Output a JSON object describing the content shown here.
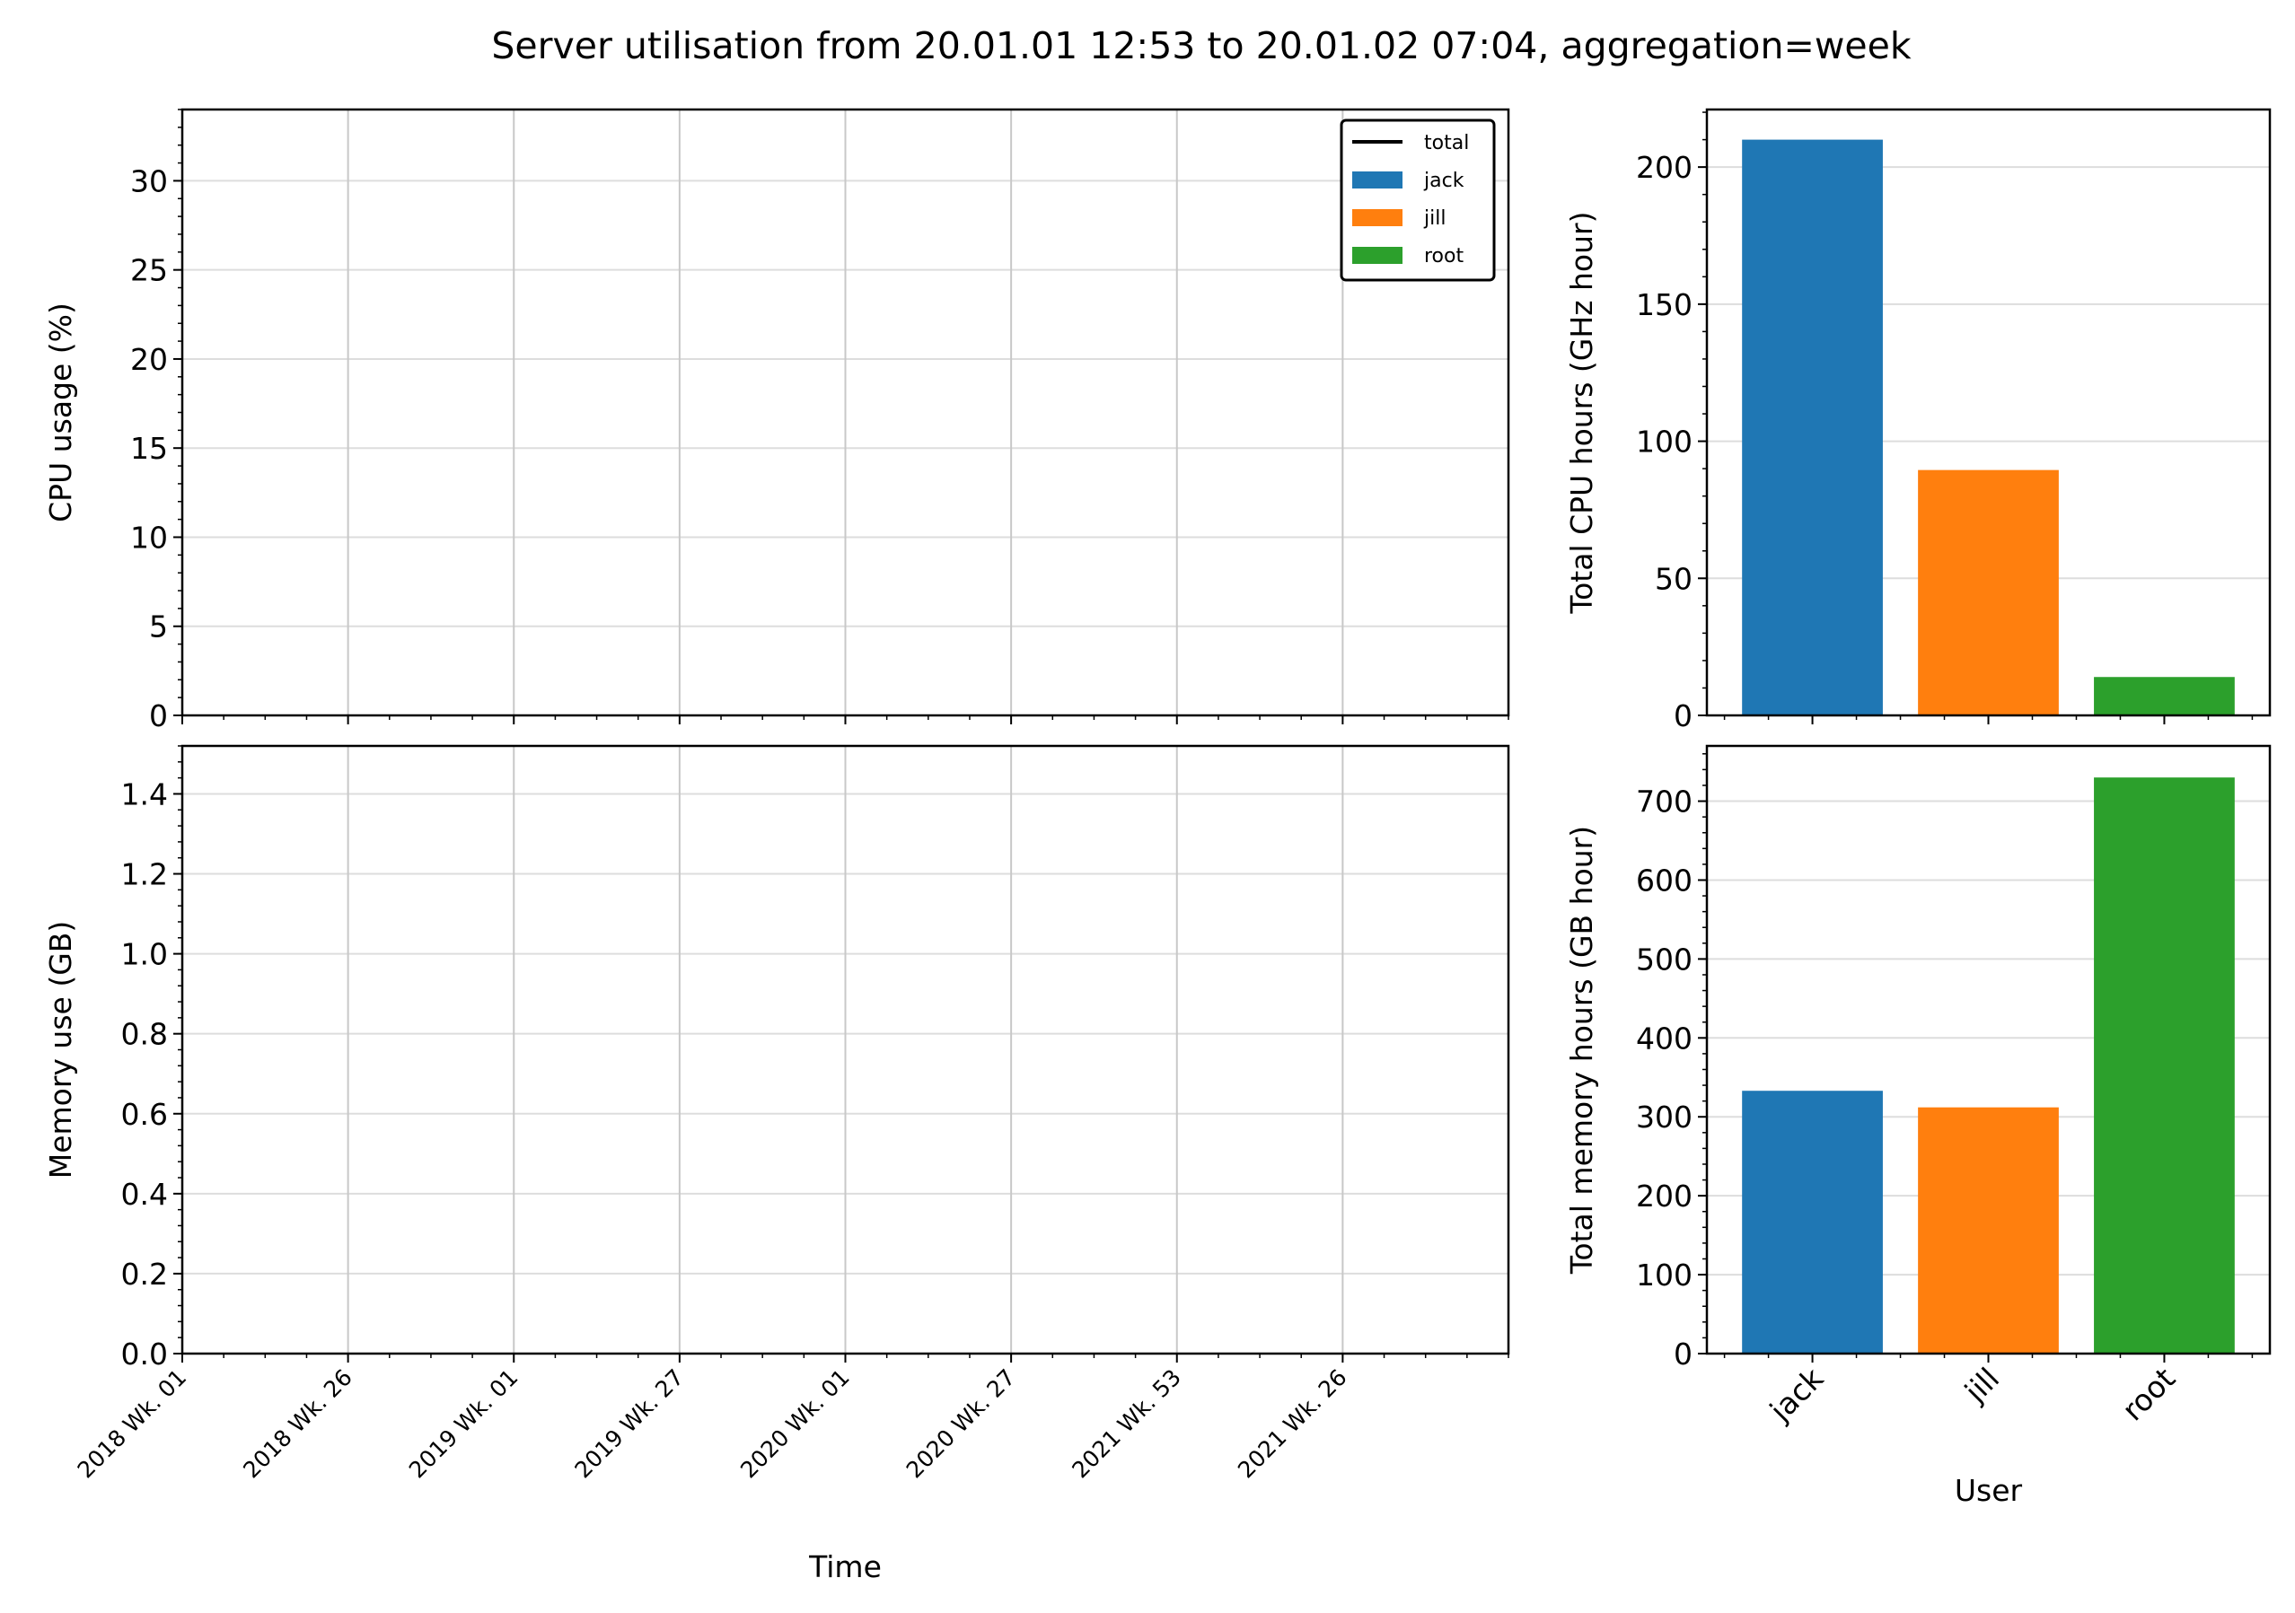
{
  "figure": {
    "title": "Server utilisation from 20.01.01 12:53 to 20.01.02 07:04, aggregation=week"
  },
  "chart_data": [
    {
      "id": "cpu_time",
      "type": "line",
      "title": "",
      "xlabel": "",
      "ylabel": "CPU usage (%)",
      "ylim": [
        0,
        34
      ],
      "yticks": [
        "0",
        "5",
        "10",
        "15",
        "20",
        "25",
        "30"
      ],
      "x_tick_labels": [
        "2018 Wk. 01",
        "2018 Wk. 26",
        "2019 Wk. 01",
        "2019 Wk. 27",
        "2020 Wk. 01",
        "2020 Wk. 27",
        "2021 Wk. 53",
        "2021 Wk. 26"
      ],
      "grid": true,
      "legend": {
        "placement": "top-right",
        "entries": [
          {
            "label": "total",
            "kind": "line",
            "color": "#000000"
          },
          {
            "label": "jack",
            "kind": "patch",
            "color": "#1f77b4"
          },
          {
            "label": "jill",
            "kind": "patch",
            "color": "#ff7f0e"
          },
          {
            "label": "root",
            "kind": "patch",
            "color": "#2ca02c"
          }
        ]
      },
      "series": []
    },
    {
      "id": "memory_time",
      "type": "line",
      "title": "",
      "xlabel": "Time",
      "ylabel": "Memory use (GB)",
      "ylim": [
        0,
        1.52
      ],
      "yticks": [
        "0.0",
        "0.2",
        "0.4",
        "0.6",
        "0.8",
        "1.0",
        "1.2",
        "1.4"
      ],
      "x_tick_labels": [
        "2018 Wk. 01",
        "2018 Wk. 26",
        "2019 Wk. 01",
        "2019 Wk. 27",
        "2020 Wk. 01",
        "2020 Wk. 27",
        "2021 Wk. 53",
        "2021 Wk. 26"
      ],
      "grid": true,
      "series": []
    },
    {
      "id": "cpu_hours",
      "type": "bar",
      "title": "",
      "xlabel": "",
      "ylabel": "Total CPU hours (GHz hour)",
      "ylim": [
        0,
        221
      ],
      "yticks": [
        "0",
        "50",
        "100",
        "150",
        "200"
      ],
      "categories": [
        "jack",
        "jill",
        "root"
      ],
      "values": [
        210,
        89.5,
        14
      ],
      "colors": [
        "#1f77b4",
        "#ff7f0e",
        "#2ca02c"
      ],
      "grid": true
    },
    {
      "id": "memory_hours",
      "type": "bar",
      "title": "",
      "xlabel": "User",
      "ylabel": "Total memory hours (GB hour)",
      "ylim": [
        0,
        770
      ],
      "yticks": [
        "0",
        "100",
        "200",
        "300",
        "400",
        "500",
        "600",
        "700"
      ],
      "categories": [
        "jack",
        "jill",
        "root"
      ],
      "values": [
        333,
        312,
        730
      ],
      "colors": [
        "#1f77b4",
        "#ff7f0e",
        "#2ca02c"
      ],
      "grid": true
    }
  ]
}
